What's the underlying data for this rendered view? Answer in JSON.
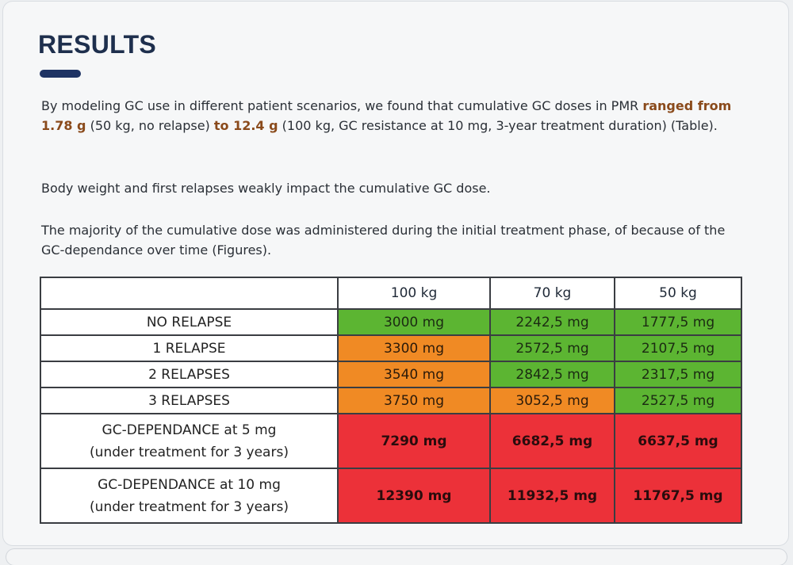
{
  "heading": "RESULTS",
  "paragraphs": {
    "p1": {
      "before": "By modeling GC use in different patient scenarios, we found that cumulative GC doses in PMR ",
      "hl1": "ranged from 1.78 g",
      "mid": " (50 kg, no relapse) ",
      "hl2": "to 12.4 g",
      "after": " (100 kg, GC resistance at 10 mg, 3-year treatment duration) (Table)."
    },
    "p2": "Body weight and first relapses weakly impact the cumulative GC dose.",
    "p3": "The majority of the cumulative dose was administered during the initial treatment phase, of because of the GC-dependance over time (Figures)."
  },
  "table": {
    "columns": [
      "",
      "100 kg",
      "70 kg",
      "50 kg"
    ],
    "rows": [
      {
        "label": "NO RELAPSE",
        "values": [
          "3000 mg",
          "2242,5 mg",
          "1777,5 mg"
        ],
        "colors": [
          "green",
          "green",
          "green"
        ]
      },
      {
        "label": "1 RELAPSE",
        "values": [
          "3300 mg",
          "2572,5 mg",
          "2107,5 mg"
        ],
        "colors": [
          "orange",
          "green",
          "green"
        ]
      },
      {
        "label": "2 RELAPSES",
        "values": [
          "3540 mg",
          "2842,5 mg",
          "2317,5 mg"
        ],
        "colors": [
          "orange",
          "green",
          "green"
        ]
      },
      {
        "label": "3 RELAPSES",
        "values": [
          "3750 mg",
          "3052,5 mg",
          "2527,5 mg"
        ],
        "colors": [
          "orange",
          "orange",
          "green"
        ]
      },
      {
        "label_line1": "GC-DEPENDANCE at 5 mg",
        "label_line2": "(under treatment for 3 years)",
        "values": [
          "7290 mg",
          "6682,5 mg",
          "6637,5 mg"
        ],
        "colors": [
          "red",
          "red",
          "red"
        ]
      },
      {
        "label_line1": "GC-DEPENDANCE at 10 mg",
        "label_line2": "(under treatment for 3 years)",
        "values": [
          "12390 mg",
          "11932,5 mg",
          "11767,5 mg"
        ],
        "colors": [
          "red",
          "red",
          "red"
        ]
      }
    ]
  },
  "colors": {
    "green": "#5cb532",
    "orange": "#f08a24",
    "red": "#ec3139",
    "heading": "#1e2f4d",
    "highlight": "#8a4a1b"
  }
}
